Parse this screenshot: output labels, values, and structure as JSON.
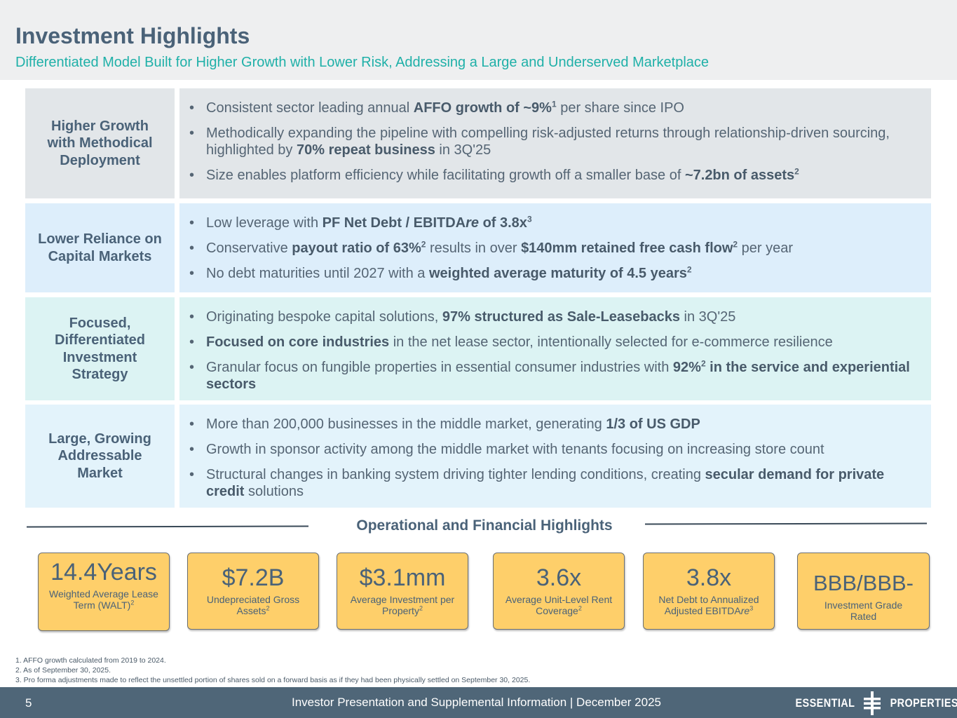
{
  "header": {
    "title": "Investment Highlights",
    "subtitle": "Differentiated Model Built for Higher Growth with Lower Risk, Addressing a Large and Underserved Marketplace"
  },
  "rows": [
    {
      "label": "Higher Growth with Methodical Deployment",
      "bullets": [
        [
          {
            "t": "Consistent sector leading annual "
          },
          {
            "t": "AFFO growth of ~9%",
            "b": true
          },
          {
            "t": "1",
            "sup": true
          },
          {
            "t": " per share since IPO"
          }
        ],
        [
          {
            "t": "Methodically expanding the pipeline with compelling risk-adjusted returns through relationship-driven sourcing, highlighted by "
          },
          {
            "t": "70% repeat business",
            "b": true
          },
          {
            "t": " in 3Q'25"
          }
        ],
        [
          {
            "t": "Size enables platform efficiency while facilitating growth off a smaller base of "
          },
          {
            "t": "~7.2bn of assets",
            "b": true
          },
          {
            "t": "2",
            "sup": true
          }
        ]
      ]
    },
    {
      "label": "Lower Reliance on Capital Markets",
      "bullets": [
        [
          {
            "t": "Low leverage with "
          },
          {
            "t": "PF Net Debt / EBITDA",
            "b": true
          },
          {
            "t": "re",
            "b": true,
            "i": true
          },
          {
            "t": " of 3.8x",
            "b": true
          },
          {
            "t": "3",
            "sup": true
          }
        ],
        [
          {
            "t": "Conservative "
          },
          {
            "t": "payout ratio of 63%",
            "b": true
          },
          {
            "t": "2",
            "sup": true
          },
          {
            "t": " results in over "
          },
          {
            "t": "$140mm retained free cash flow",
            "b": true
          },
          {
            "t": "2",
            "sup": true
          },
          {
            "t": " per year"
          }
        ],
        [
          {
            "t": "No debt maturities until 2027 with a "
          },
          {
            "t": "weighted average maturity of 4.5 years",
            "b": true
          },
          {
            "t": "2",
            "sup": true
          }
        ]
      ]
    },
    {
      "label": "Focused, Differentiated Investment Strategy",
      "bullets": [
        [
          {
            "t": "Originating bespoke capital solutions, "
          },
          {
            "t": "97% structured as Sale-Leasebacks",
            "b": true
          },
          {
            "t": " in 3Q'25"
          }
        ],
        [
          {
            "t": "Focused on core industries",
            "b": true
          },
          {
            "t": " in the net lease sector, intentionally selected for e-commerce resilience"
          }
        ],
        [
          {
            "t": "Granular focus on fungible properties in essential consumer industries with "
          },
          {
            "t": "92%",
            "b": true
          },
          {
            "t": "2",
            "sup": true
          },
          {
            "t": " in the service and experiential sectors",
            "b": true
          }
        ]
      ]
    },
    {
      "label": "Large, Growing Addressable Market",
      "bullets": [
        [
          {
            "t": "More than 200,000 businesses in the middle market, generating "
          },
          {
            "t": "1/3 of US GDP",
            "b": true
          }
        ],
        [
          {
            "t": "Growth in sponsor activity among the middle market with tenants focusing on increasing store count"
          }
        ],
        [
          {
            "t": "Structural changes in banking system driving tighter lending conditions, creating "
          },
          {
            "t": "secular demand for private credit",
            "b": true
          },
          {
            "t": " solutions"
          }
        ]
      ]
    }
  ],
  "highlights": {
    "title": "Operational and Financial Highlights",
    "cards": [
      {
        "big": "14.4Years",
        "small": "Weighted Average Lease Term (WALT)",
        "sup": "2"
      },
      {
        "big": "$7.2B",
        "small": "Undepreciated Gross Assets",
        "sup": "2"
      },
      {
        "big": "$3.1mm",
        "small": "Average Investment per Property",
        "sup": "2"
      },
      {
        "big": "3.6x",
        "small": "Average Unit-Level Rent Coverage",
        "sup": "2"
      },
      {
        "big": "3.8x",
        "small_pre": "Net Debt to Annualized Adjusted EBITDA",
        "small_it": "re",
        "sup": "3"
      },
      {
        "big": "BBB/BBB-",
        "small": "Investment Grade Rated",
        "sup": ""
      }
    ]
  },
  "footnotes": [
    "1.  AFFO growth calculated from 2019 to 2024.",
    "2.  As of September 30, 2025.",
    "3.  Pro forma adjustments made to reflect the unsettled portion of shares sold on a forward basis as if they had been physically settled on September 30, 2025."
  ],
  "footer": {
    "page_number": "5",
    "text": "Investor Presentation and Supplemental Information |  December 2025",
    "logo_left": "ESSENTIAL",
    "logo_right": "PROPERTIES"
  }
}
